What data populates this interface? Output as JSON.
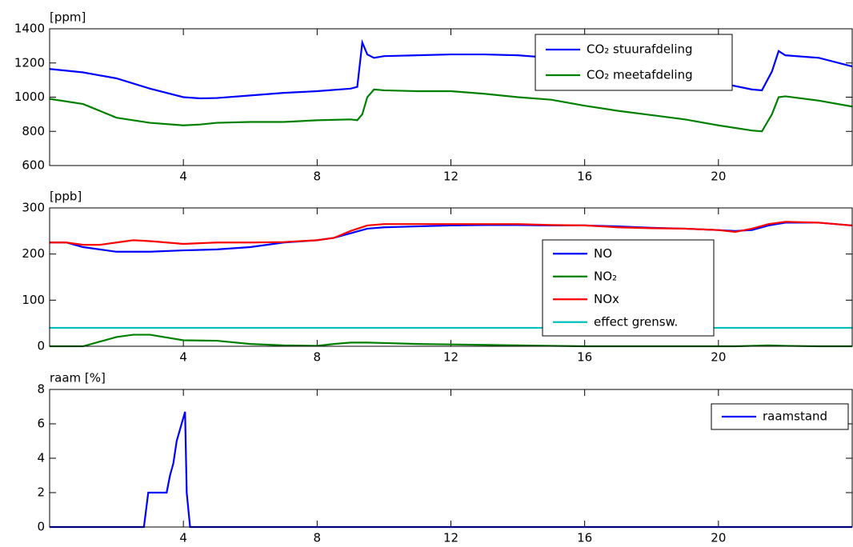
{
  "chart_data": [
    {
      "type": "line",
      "ylabel": "[ppm]",
      "x": [
        0,
        1,
        2,
        3,
        4,
        4.5,
        5,
        6,
        7,
        8,
        9,
        9.2,
        9.35,
        9.5,
        9.7,
        10,
        11,
        12,
        13,
        14,
        15,
        16,
        17,
        18,
        19,
        20,
        21,
        21.3,
        21.6,
        21.8,
        22,
        23,
        24
      ],
      "series": [
        {
          "name": "CO₂ stuurafdeling",
          "color": "#0000ff",
          "values": [
            1165,
            1145,
            1110,
            1050,
            1000,
            993,
            995,
            1010,
            1025,
            1035,
            1050,
            1060,
            1320,
            1250,
            1230,
            1240,
            1245,
            1250,
            1250,
            1245,
            1230,
            1210,
            1180,
            1150,
            1120,
            1085,
            1045,
            1040,
            1150,
            1270,
            1245,
            1230,
            1180
          ]
        },
        {
          "name": "CO₂ meetafdeling",
          "color": "#008000",
          "values": [
            990,
            960,
            880,
            850,
            835,
            840,
            850,
            855,
            855,
            865,
            870,
            865,
            900,
            1000,
            1045,
            1040,
            1035,
            1035,
            1020,
            1000,
            985,
            950,
            920,
            895,
            870,
            835,
            805,
            800,
            900,
            1000,
            1005,
            980,
            945
          ]
        }
      ],
      "xlim": [
        0,
        24
      ],
      "xticks": [
        4,
        8,
        12,
        16,
        20
      ],
      "ylim": [
        600,
        1400
      ],
      "yticks": [
        600,
        800,
        1000,
        1200,
        1400
      ],
      "legend": "upper right"
    },
    {
      "type": "line",
      "ylabel": "[ppb]",
      "x": [
        0,
        0.5,
        1,
        1.5,
        2,
        2.5,
        3,
        4,
        5,
        6,
        7,
        8,
        8.5,
        9,
        9.5,
        10,
        11,
        12,
        13,
        14,
        15,
        16,
        17,
        18,
        19,
        20,
        20.5,
        21,
        21.5,
        22,
        23,
        24
      ],
      "series": [
        {
          "name": "NO",
          "color": "#0000ff",
          "values": [
            225,
            225,
            215,
            210,
            205,
            205,
            205,
            208,
            210,
            215,
            225,
            230,
            235,
            245,
            255,
            258,
            260,
            262,
            263,
            263,
            262,
            262,
            260,
            257,
            255,
            252,
            250,
            252,
            262,
            268,
            268,
            262
          ]
        },
        {
          "name": "NO₂",
          "color": "#008000",
          "values": [
            0,
            0,
            0,
            10,
            20,
            25,
            25,
            13,
            12,
            5,
            2,
            1,
            5,
            8,
            8,
            7,
            5,
            4,
            3,
            2,
            1,
            0,
            0,
            0,
            0,
            0,
            0,
            1,
            2,
            1,
            0,
            0
          ]
        },
        {
          "name": "NOx",
          "color": "#ff0000",
          "values": [
            225,
            225,
            220,
            220,
            225,
            230,
            228,
            222,
            225,
            225,
            226,
            230,
            235,
            250,
            262,
            265,
            265,
            265,
            265,
            265,
            263,
            262,
            258,
            256,
            255,
            252,
            248,
            255,
            265,
            270,
            268,
            262
          ]
        },
        {
          "name": "effect grensw.",
          "color": "#00bfbf",
          "values": [
            40,
            40,
            40,
            40,
            40,
            40,
            40,
            40,
            40,
            40,
            40,
            40,
            40,
            40,
            40,
            40,
            40,
            40,
            40,
            40,
            40,
            40,
            40,
            40,
            40,
            40,
            40,
            40,
            40,
            40,
            40,
            40
          ]
        }
      ],
      "xlim": [
        0,
        24
      ],
      "xticks": [
        4,
        8,
        12,
        16,
        20
      ],
      "ylim": [
        0,
        300
      ],
      "yticks": [
        0,
        100,
        200,
        300
      ],
      "legend": "center right"
    },
    {
      "type": "line",
      "ylabel": "raam [%]",
      "x": [
        0,
        2.82,
        2.95,
        3.5,
        3.6,
        3.7,
        3.8,
        4.05,
        4.1,
        4.2,
        24
      ],
      "series": [
        {
          "name": "raamstand",
          "color": "#0000ff",
          "values": [
            0,
            0,
            2,
            2,
            3,
            3.7,
            5,
            6.7,
            2,
            0,
            0
          ]
        }
      ],
      "xlim": [
        0,
        24
      ],
      "xticks": [
        4,
        8,
        12,
        16,
        20
      ],
      "ylim": [
        0,
        8
      ],
      "yticks": [
        0,
        2,
        4,
        6,
        8
      ],
      "legend": "upper right"
    }
  ]
}
